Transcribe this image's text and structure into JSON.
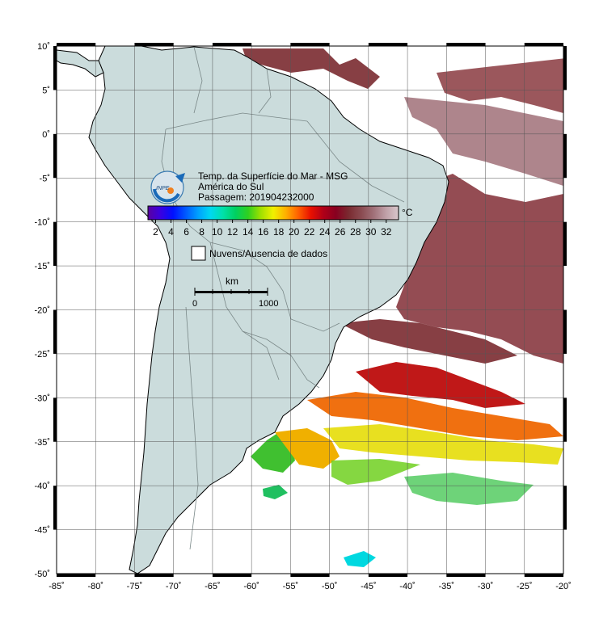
{
  "map": {
    "title": "Temp. da Superfície do Mar - MSG",
    "region": "América do Sul",
    "pass_label": "Passagem: 201904232000",
    "logo_text": "INPE",
    "colorbar": {
      "unit": "°C",
      "ticks": [
        "2",
        "4",
        "6",
        "8",
        "10",
        "12",
        "14",
        "16",
        "18",
        "20",
        "22",
        "24",
        "26",
        "28",
        "30",
        "32"
      ],
      "colors": [
        "#5a00a0",
        "#3a00e0",
        "#0010ff",
        "#0058ff",
        "#00a0ff",
        "#00d8f0",
        "#00e0a8",
        "#00d060",
        "#30d020",
        "#a0e000",
        "#f0f000",
        "#ffb000",
        "#ff6000",
        "#e81000",
        "#b00018",
        "#880020",
        "#7a2a30",
        "#8a4a50",
        "#a07078",
        "#c0a0a8",
        "#d8c8cc"
      ]
    },
    "no_data_label": "Nuvens/Ausencia de dados",
    "scale": {
      "unit": "km",
      "start": "0",
      "end": "1000"
    },
    "lon_labels": [
      "-85˚",
      "-80˚",
      "-75˚",
      "-70˚",
      "-65˚",
      "-60˚",
      "-55˚",
      "-50˚",
      "-45˚",
      "-40˚",
      "-35˚",
      "-30˚",
      "-25˚",
      "-20˚"
    ],
    "lat_labels": [
      "10˚",
      "5˚",
      "0˚",
      "-5˚",
      "-10˚",
      "-15˚",
      "-20˚",
      "-25˚",
      "-30˚",
      "-35˚",
      "-40˚",
      "-45˚",
      "-50˚"
    ],
    "colors": {
      "land": "#cbdcdc",
      "ocean": "#ffffff",
      "border": "#000000",
      "grid": "#555555",
      "political": "#7a8888"
    }
  }
}
